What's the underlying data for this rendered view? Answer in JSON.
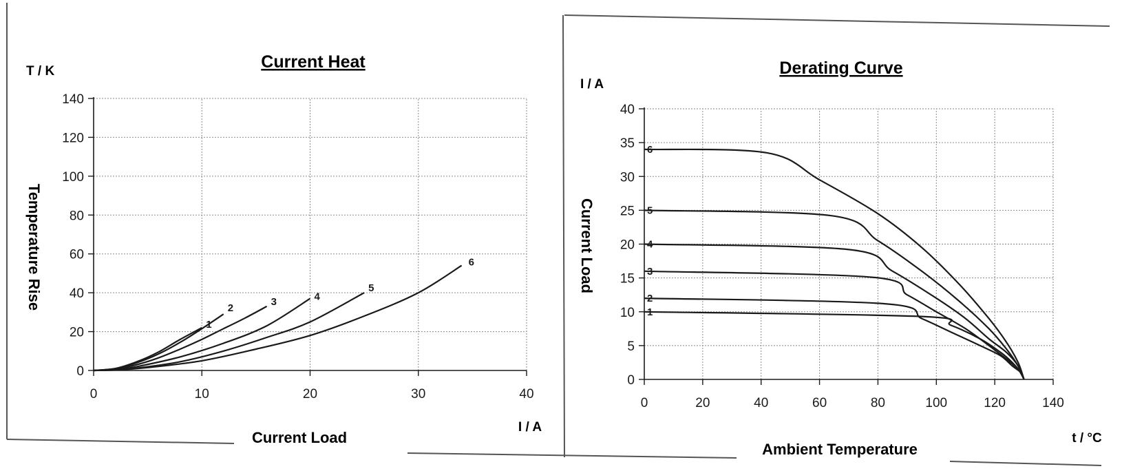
{
  "chart_data": [
    {
      "type": "line",
      "title": "Current Heat",
      "xlabel": "Current Load",
      "ylabel": "Temperature Rise",
      "x_unit": "I / A",
      "y_unit": "T / K",
      "xlim": [
        0,
        40
      ],
      "ylim": [
        0,
        140
      ],
      "xticks": [
        0,
        10,
        20,
        30,
        40
      ],
      "yticks": [
        0,
        20,
        40,
        60,
        80,
        100,
        120,
        140
      ],
      "grid": true,
      "series": [
        {
          "name": "1",
          "x": [
            0,
            2,
            4,
            6,
            8,
            10
          ],
          "y": [
            0,
            1,
            4.5,
            9.5,
            16,
            22
          ]
        },
        {
          "name": "2",
          "x": [
            0,
            2,
            4,
            6,
            8,
            10,
            12
          ],
          "y": [
            0,
            1,
            4,
            8.5,
            14.5,
            21.5,
            29
          ]
        },
        {
          "name": "3",
          "x": [
            0,
            2,
            4,
            6,
            8,
            10,
            12,
            14,
            16
          ],
          "y": [
            0,
            0.8,
            3,
            6.5,
            11,
            16,
            21.5,
            27,
            33
          ]
        },
        {
          "name": "4",
          "x": [
            0,
            2,
            4,
            8,
            12,
            16,
            20
          ],
          "y": [
            0,
            0.5,
            2,
            7,
            14,
            23,
            37
          ]
        },
        {
          "name": "5",
          "x": [
            0,
            2,
            4,
            8,
            12,
            16,
            20,
            25
          ],
          "y": [
            0,
            0.3,
            1.2,
            4.5,
            10,
            17,
            25,
            40
          ]
        },
        {
          "name": "6",
          "x": [
            0,
            2,
            5,
            10,
            15,
            20,
            25,
            30,
            34
          ],
          "y": [
            0,
            0.2,
            1.5,
            5,
            11,
            18,
            28,
            40,
            54
          ]
        }
      ]
    },
    {
      "type": "line",
      "title": "Derating Curve",
      "xlabel": "Ambient Temperature",
      "ylabel": "Current Load",
      "x_unit": "t / °C",
      "y_unit": "I / A",
      "xlim": [
        0,
        140
      ],
      "ylim": [
        0,
        40
      ],
      "xticks": [
        0,
        20,
        40,
        60,
        80,
        100,
        120,
        140
      ],
      "yticks": [
        0,
        5,
        10,
        15,
        20,
        25,
        30,
        35,
        40
      ],
      "grid": true,
      "series": [
        {
          "name": "1",
          "x": [
            0,
            95,
            105,
            115,
            122,
            126,
            129,
            130
          ],
          "y": [
            10,
            9.3,
            8,
            6,
            4,
            2.5,
            1,
            0
          ]
        },
        {
          "name": "2",
          "x": [
            0,
            82,
            95,
            105,
            115,
            122,
            126,
            129,
            130
          ],
          "y": [
            12,
            11.2,
            9,
            7,
            5,
            3.5,
            2,
            1,
            0
          ]
        },
        {
          "name": "3",
          "x": [
            0,
            78,
            90,
            100,
            110,
            118,
            124,
            128,
            130
          ],
          "y": [
            16,
            15.1,
            12.5,
            10,
            7.5,
            5,
            3,
            1.5,
            0
          ]
        },
        {
          "name": "4",
          "x": [
            0,
            70,
            85,
            100,
            110,
            118,
            124,
            128,
            130
          ],
          "y": [
            20,
            19.2,
            16,
            12,
            9,
            6,
            4,
            2,
            0
          ]
        },
        {
          "name": "5",
          "x": [
            0,
            64,
            80,
            95,
            108,
            118,
            124,
            128,
            130
          ],
          "y": [
            25,
            24.2,
            20.5,
            16,
            11.5,
            7.5,
            4.5,
            2,
            0
          ]
        },
        {
          "name": "6",
          "x": [
            0,
            42,
            60,
            80,
            95,
            108,
            118,
            124,
            128,
            130
          ],
          "y": [
            34,
            33.5,
            29.5,
            24.5,
            19.5,
            14,
            9,
            5.5,
            2.5,
            0
          ]
        }
      ]
    }
  ],
  "colors": {
    "ink": "#1a1a1a",
    "grid": "#8a8a8a",
    "frame": "#555555"
  }
}
